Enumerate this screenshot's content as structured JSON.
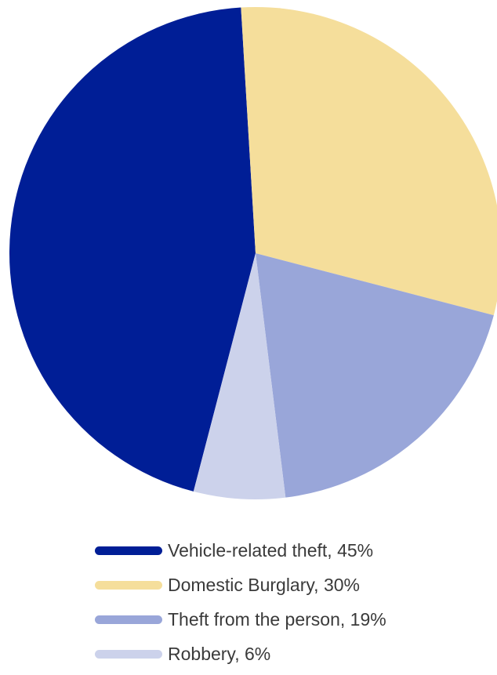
{
  "chart_data": {
    "type": "pie",
    "title": "",
    "categories": [
      "Vehicle-related theft",
      "Domestic Burglary",
      "Theft from the person",
      "Robbery"
    ],
    "values": [
      45,
      30,
      19,
      6
    ],
    "colors": [
      "#001e96",
      "#f5de9b",
      "#99a6d9",
      "#ccd2eb"
    ],
    "legend": {
      "position": "bottom",
      "items": [
        {
          "label": "Vehicle-related theft, 45%",
          "color": "#001e96"
        },
        {
          "label": "Domestic Burglary, 30%",
          "color": "#f5de9b"
        },
        {
          "label": "Theft from the person, 19%",
          "color": "#99a6d9"
        },
        {
          "label": "Robbery, 6%",
          "color": "#ccd2eb"
        }
      ]
    }
  }
}
